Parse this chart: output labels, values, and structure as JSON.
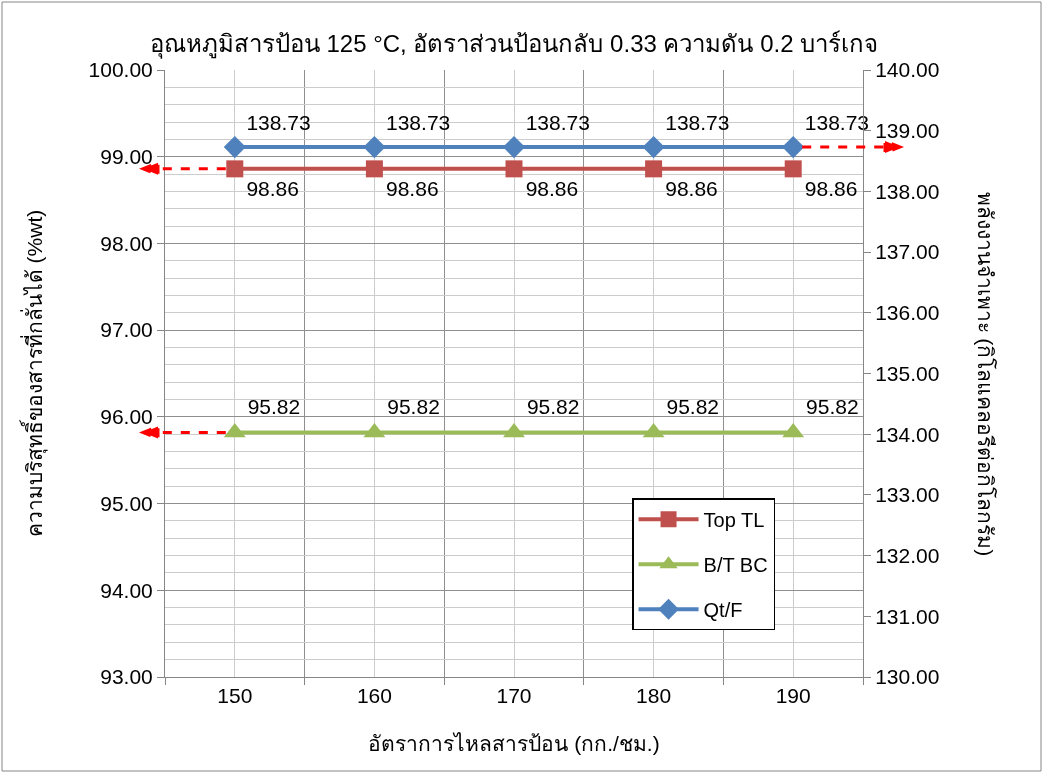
{
  "chart_data": {
    "type": "line",
    "title": "อุณหภูมิสารป้อน 125 °C, อัตราส่วนป้อนกลับ 0.33 ความดัน 0.2 บาร์เกจ",
    "xlabel": "อัตราการไหลสารป้อน (กก./ชม.)",
    "ylabel": "ความบริสุทธิ์ของสารที่กลั่นได้ (%wt)",
    "y2label": "พลังงานจำเพาะ (กิโลแคลอรีต่อกิโลกรัม)",
    "categories": [
      "150",
      "160",
      "170",
      "180",
      "190"
    ],
    "series": [
      {
        "name": "Top TL",
        "color": "#c0504d",
        "marker": "square",
        "values": [
          98.86,
          98.86,
          98.86,
          98.86,
          98.86
        ]
      },
      {
        "name": "B/T BC",
        "color": "#9bbb59",
        "marker": "triangle",
        "values": [
          95.82,
          95.82,
          95.82,
          95.82,
          95.82
        ]
      },
      {
        "name": "Qt/F",
        "color": "#4f81bd",
        "marker": "diamond",
        "axis": "y2",
        "values": [
          138.73,
          138.73,
          138.73,
          138.73,
          138.73
        ]
      }
    ],
    "ylim": [
      93,
      100
    ],
    "yticks": [
      {
        "value": 93,
        "label": "93.00"
      },
      {
        "value": 93.2,
        "label": null
      },
      {
        "value": 93.4,
        "label": null
      },
      {
        "value": 93.6,
        "label": null
      },
      {
        "value": 93.8,
        "label": null
      },
      {
        "value": 94,
        "label": "94.00"
      },
      {
        "value": 94.2,
        "label": null
      },
      {
        "value": 94.4,
        "label": null
      },
      {
        "value": 94.6,
        "label": null
      },
      {
        "value": 94.8,
        "label": null
      },
      {
        "value": 95,
        "label": "95.00"
      },
      {
        "value": 95.2,
        "label": null
      },
      {
        "value": 95.4,
        "label": null
      },
      {
        "value": 95.6,
        "label": null
      },
      {
        "value": 95.8,
        "label": null
      },
      {
        "value": 96,
        "label": "96.00"
      },
      {
        "value": 96.2,
        "label": null
      },
      {
        "value": 96.4,
        "label": null
      },
      {
        "value": 96.6,
        "label": null
      },
      {
        "value": 96.8,
        "label": null
      },
      {
        "value": 97,
        "label": "97.00"
      },
      {
        "value": 97.2,
        "label": null
      },
      {
        "value": 97.4,
        "label": null
      },
      {
        "value": 97.6,
        "label": null
      },
      {
        "value": 97.8,
        "label": null
      },
      {
        "value": 98,
        "label": "98.00"
      },
      {
        "value": 98.2,
        "label": null
      },
      {
        "value": 98.4,
        "label": null
      },
      {
        "value": 98.6,
        "label": null
      },
      {
        "value": 98.8,
        "label": null
      },
      {
        "value": 99,
        "label": "99.00"
      },
      {
        "value": 99.2,
        "label": null
      },
      {
        "value": 99.4,
        "label": null
      },
      {
        "value": 99.6,
        "label": null
      },
      {
        "value": 99.8,
        "label": null
      },
      {
        "value": 100,
        "label": "100.00"
      }
    ],
    "y2lim": [
      130,
      140
    ],
    "y2ticks": [
      {
        "value": 130,
        "label": "130.00"
      },
      {
        "value": 131,
        "label": "131.00"
      },
      {
        "value": 132,
        "label": "132.00"
      },
      {
        "value": 133,
        "label": "133.00"
      },
      {
        "value": 134,
        "label": "134.00"
      },
      {
        "value": 135,
        "label": "135.00"
      },
      {
        "value": 136,
        "label": "136.00"
      },
      {
        "value": 137,
        "label": "137.00"
      },
      {
        "value": 138,
        "label": "138.00"
      },
      {
        "value": 139,
        "label": "139.00"
      },
      {
        "value": 140,
        "label": "140.00"
      }
    ],
    "grid": true,
    "legend": "bottom right",
    "data_labels": true,
    "line_style": "solid"
  }
}
